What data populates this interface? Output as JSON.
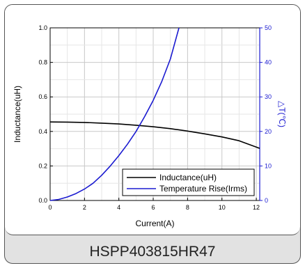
{
  "caption": "HSPP403815HR47",
  "chart_data": {
    "type": "line",
    "xlabel": "Current(A)",
    "ylabel": "Inductance(uH)",
    "y2label": "△T(℃)",
    "xlim": [
      0,
      12.2
    ],
    "ylim": [
      0,
      1.0
    ],
    "y2lim": [
      0,
      50
    ],
    "x_ticks": [
      "0",
      "2",
      "4",
      "6",
      "8",
      "10",
      "12"
    ],
    "y_ticks": [
      "0.0",
      "0.2",
      "0.4",
      "0.6",
      "0.8",
      "1.0"
    ],
    "y2_ticks": [
      "0",
      "10",
      "20",
      "30",
      "40",
      "50"
    ],
    "grid": true,
    "legend_position": "bottom-right",
    "series": [
      {
        "name": "Inductance(uH)",
        "axis": "left",
        "color": "#000000",
        "x": [
          0,
          1,
          2,
          3,
          4,
          5,
          6,
          7,
          8,
          9,
          10,
          11,
          12.2
        ],
        "y": [
          0.455,
          0.454,
          0.452,
          0.448,
          0.443,
          0.436,
          0.427,
          0.416,
          0.402,
          0.386,
          0.368,
          0.346,
          0.302
        ]
      },
      {
        "name": "Temperature Rise(Irms)",
        "axis": "right",
        "color": "#1a1ad0",
        "x": [
          0,
          0.5,
          1,
          1.5,
          2,
          2.5,
          3,
          3.5,
          4,
          4.5,
          5,
          5.5,
          6,
          6.5,
          7,
          7.5
        ],
        "y": [
          0,
          0.3,
          1.0,
          2.0,
          3.3,
          5.0,
          7.3,
          10,
          13,
          16.3,
          20,
          24.3,
          29,
          34.5,
          41,
          50
        ]
      }
    ]
  }
}
